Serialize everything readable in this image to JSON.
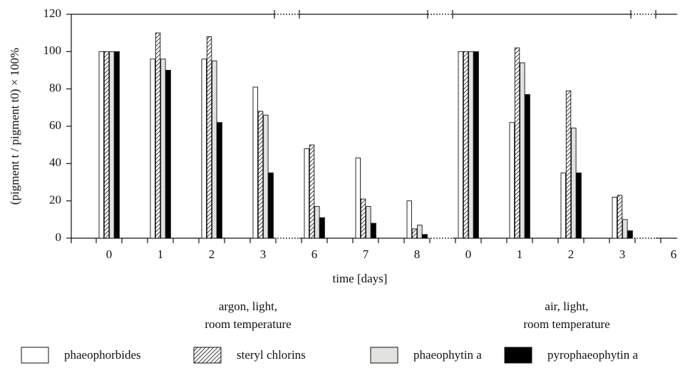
{
  "chart_data": {
    "type": "bar",
    "y_axis_label": "(pigment t / pigment t0) × 100%",
    "x_axis_label": "time [days]",
    "group_labels": [
      [
        "argon, light,",
        "room temperature"
      ],
      [
        "air, light,",
        "room temperature"
      ]
    ],
    "categories": [
      "0",
      "1",
      "2",
      "3",
      "6",
      "7",
      "8",
      "0",
      "1",
      "2",
      "3",
      "6"
    ],
    "series": [
      {
        "name": "phaeophorbides",
        "color": "#ffffff",
        "values": [
          100,
          96,
          96,
          81,
          48,
          43,
          20,
          100,
          62,
          35,
          22,
          null
        ]
      },
      {
        "name": "steryl chlorins",
        "color": "#ffffff",
        "pattern": "diagonal-hatch",
        "values": [
          100,
          110,
          108,
          68,
          50,
          21,
          5,
          100,
          102,
          79,
          23,
          null
        ]
      },
      {
        "name": "phaeophytin a",
        "color": "#e2e2de",
        "values": [
          100,
          96,
          95,
          66,
          17,
          17,
          7,
          100,
          94,
          59,
          10,
          null
        ]
      },
      {
        "name": "pyrophaeophytin a",
        "color": "#000000",
        "values": [
          100,
          90,
          62,
          35,
          11,
          8,
          2,
          100,
          77,
          35,
          4,
          null
        ]
      }
    ],
    "ylim": [
      0,
      120
    ],
    "yticks": [
      0,
      20,
      40,
      60,
      80,
      100,
      120
    ]
  }
}
